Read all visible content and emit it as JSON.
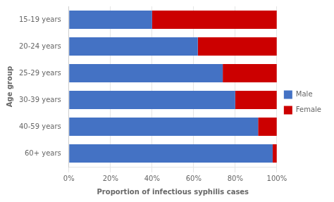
{
  "chart_data": {
    "type": "bar",
    "orientation": "horizontal",
    "stacked": true,
    "categories": [
      "15-19 years",
      "20-24 years",
      "25-29 years",
      "30-39 years",
      "40-59 years",
      "60+ years"
    ],
    "series": [
      {
        "name": "Male",
        "color": "#4472C4",
        "values": [
          40,
          62,
          74,
          80,
          91,
          98
        ]
      },
      {
        "name": "Female",
        "color": "#CC0000",
        "values": [
          60,
          38,
          26,
          20,
          9,
          2
        ]
      }
    ],
    "xlabel": "Proportion of infectious syphilis cases",
    "ylabel": "Age group",
    "xlim": [
      0,
      100
    ],
    "xticks": [
      {
        "value": 0,
        "label": "0%"
      },
      {
        "value": 20,
        "label": "20%"
      },
      {
        "value": 40,
        "label": "40%"
      },
      {
        "value": 60,
        "label": "60%"
      },
      {
        "value": 80,
        "label": "80%"
      },
      {
        "value": 100,
        "label": "100%"
      }
    ],
    "grid": "x",
    "legend": "right"
  }
}
